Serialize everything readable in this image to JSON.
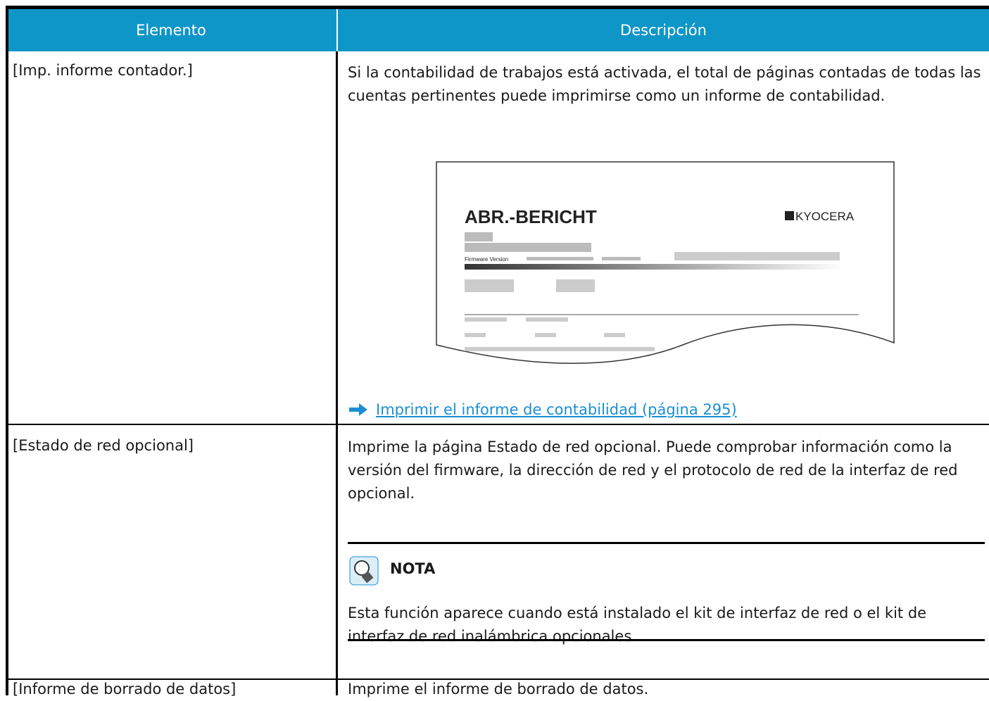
{
  "table": {
    "header": [
      "Elemento",
      "Descripción"
    ],
    "rows": [
      {
        "item": "[Imp. informe contador.]",
        "description": "Si la contabilidad de trabajos está activada, el total de páginas contadas de todas las cuentas pertinentes puede imprimirse como un informe de contabilidad.",
        "illustration": {
          "title": "ABR.-BERICHT",
          "logo": "KYOCERA",
          "firmware": "Firmware Version"
        },
        "link": "Imprimir el informe de contabilidad (página 295)"
      },
      {
        "item": "[Estado de red opcional]",
        "description": "Imprime la página Estado de red opcional. Puede comprobar información como la versión del firmware, la dirección de red y el protocolo de red de la interfaz de red opcional.",
        "note": {
          "label": "NOTA",
          "text": "Esta función aparece cuando está instalado el kit de interfaz de red o el kit de interfaz de red inalámbrica opcionales."
        }
      },
      {
        "item": "[Informe de borrado de datos]",
        "description": "Imprime el informe de borrado de datos."
      }
    ]
  }
}
